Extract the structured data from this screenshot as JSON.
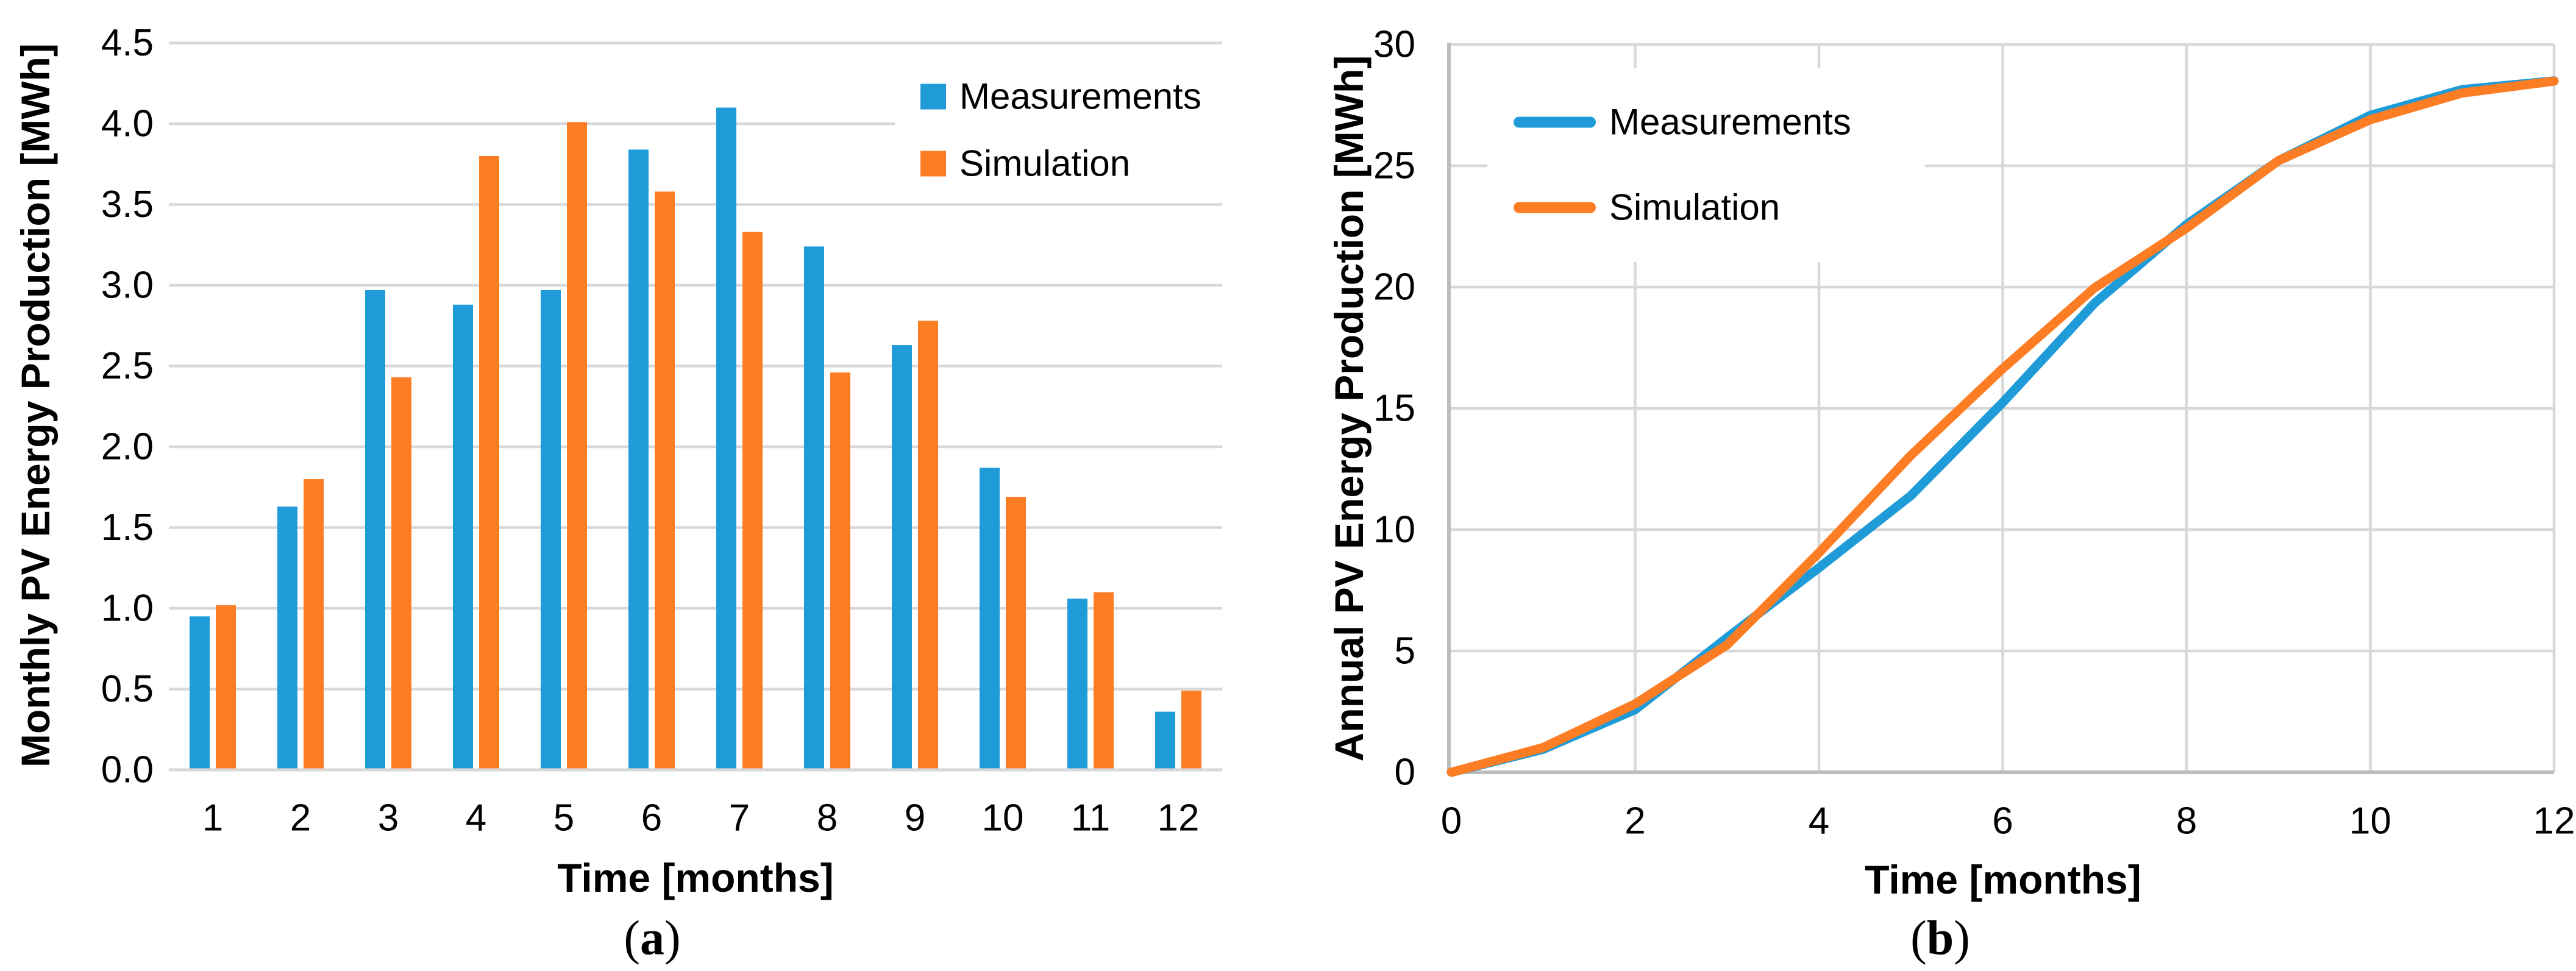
{
  "figure": {
    "background": "#ffffff",
    "colors": {
      "measurements": "#1F9BD8",
      "simulation": "#FC7D23",
      "gridline": "#D8D8D8",
      "axis_line": "#BDBDBD",
      "text": "#000000"
    },
    "legend_a": {
      "measurements": "Measurements",
      "simulation": "Simulation"
    },
    "legend_b": {
      "measurements": "Measurements",
      "simulation": "Simulation"
    },
    "panel_a": {
      "ylabel": "Monthly PV Energy Production [MWh]",
      "xlabel": "Time [months]",
      "caption": {
        "open": "(",
        "letter": "a",
        "close": ")"
      }
    },
    "panel_b": {
      "ylabel": "Annual PV Energy Production [MWh]",
      "xlabel": "Time [months]",
      "caption": {
        "open": "(",
        "letter": "b",
        "close": ")"
      }
    }
  },
  "chart_data": [
    {
      "id": "a",
      "type": "bar",
      "title": "",
      "xlabel": "Time [months]",
      "ylabel": "Monthly PV Energy Production [MWh]",
      "categories": [
        1,
        2,
        3,
        4,
        5,
        6,
        7,
        8,
        9,
        10,
        11,
        12
      ],
      "x_tick_labels": [
        "1",
        "2",
        "3",
        "4",
        "5",
        "6",
        "7",
        "8",
        "9",
        "10",
        "11",
        "12"
      ],
      "y_tick_labels": [
        "0.0",
        "0.5",
        "1.0",
        "1.5",
        "2.0",
        "2.5",
        "3.0",
        "3.5",
        "4.0",
        "4.5"
      ],
      "ylim": [
        0,
        4.5
      ],
      "ytick_step": 0.5,
      "grid": "horizontal",
      "legend_position": "top-right",
      "series": [
        {
          "name": "Measurements",
          "color": "#1F9BD8",
          "values": [
            0.95,
            1.63,
            2.97,
            2.88,
            2.97,
            3.84,
            4.1,
            3.24,
            2.63,
            1.87,
            1.06,
            0.36
          ]
        },
        {
          "name": "Simulation",
          "color": "#FC7D23",
          "values": [
            1.02,
            1.8,
            2.43,
            3.8,
            4.01,
            3.58,
            3.33,
            2.46,
            2.78,
            1.69,
            1.1,
            0.49
          ]
        }
      ]
    },
    {
      "id": "b",
      "type": "line",
      "title": "",
      "xlabel": "Time [months]",
      "ylabel": "Annual PV Energy Production [MWh]",
      "x": [
        0,
        1,
        2,
        3,
        4,
        5,
        6,
        7,
        8,
        9,
        10,
        11,
        12
      ],
      "x_tick_labels": [
        "0",
        "2",
        "4",
        "6",
        "8",
        "10",
        "12"
      ],
      "x_tick_values": [
        0,
        2,
        4,
        6,
        8,
        10,
        12
      ],
      "y_tick_labels": [
        "0",
        "5",
        "10",
        "15",
        "20",
        "25",
        "30"
      ],
      "xlim": [
        0,
        12
      ],
      "ylim": [
        0,
        30
      ],
      "ytick_step": 5,
      "grid": "both",
      "legend_position": "top-left",
      "series": [
        {
          "name": "Measurements",
          "color": "#1F9BD8",
          "values": [
            0,
            0.95,
            2.58,
            5.55,
            8.43,
            11.4,
            15.24,
            19.34,
            22.58,
            25.21,
            27.08,
            28.14,
            28.5
          ]
        },
        {
          "name": "Simulation",
          "color": "#FC7D23",
          "values": [
            0,
            1.02,
            2.82,
            5.25,
            9.05,
            13.06,
            16.64,
            19.97,
            22.43,
            25.21,
            26.9,
            28.0,
            28.49
          ]
        }
      ]
    }
  ]
}
